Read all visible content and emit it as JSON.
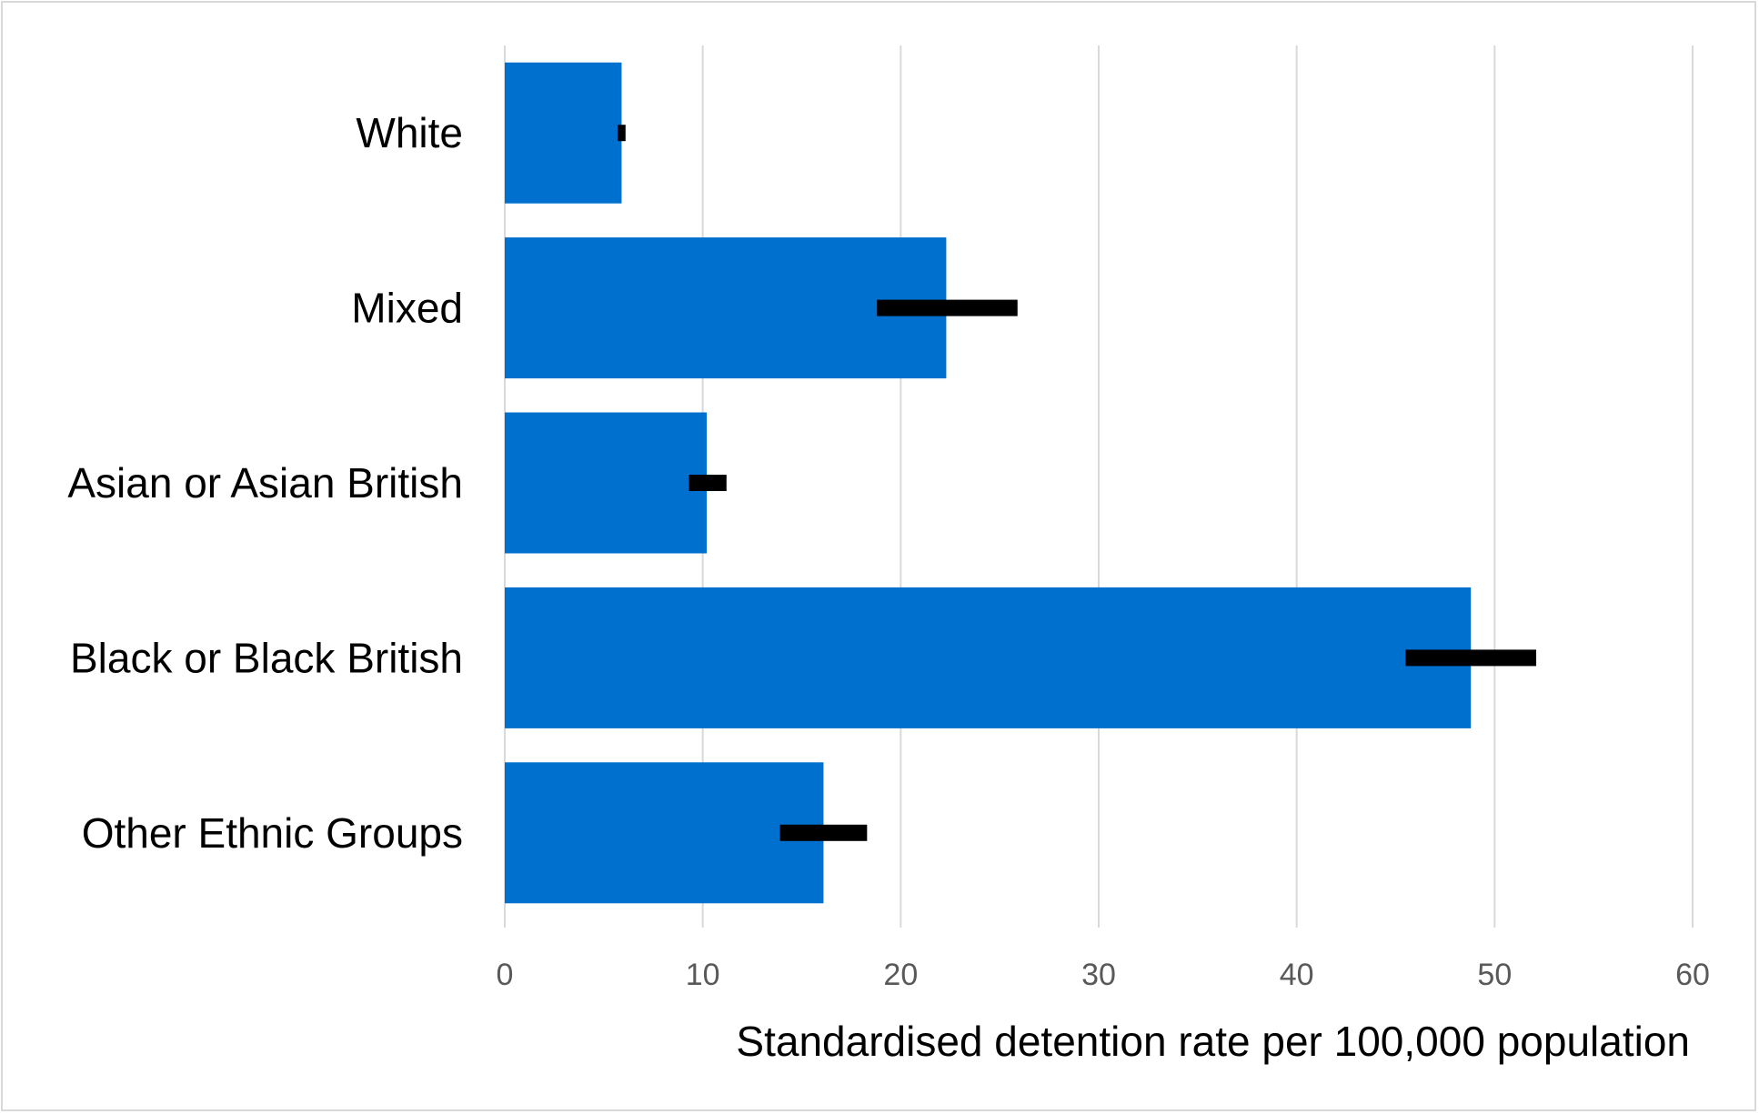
{
  "chart_data": {
    "type": "bar",
    "orientation": "horizontal",
    "categories": [
      "White",
      "Mixed",
      "Asian or Asian British",
      "Black or Black British",
      "Other Ethnic Groups"
    ],
    "values": [
      5.9,
      22.3,
      10.2,
      48.8,
      16.1
    ],
    "error_bars": [
      {
        "low": 5.7,
        "high": 6.1
      },
      {
        "low": 18.8,
        "high": 25.9
      },
      {
        "low": 9.3,
        "high": 11.2
      },
      {
        "low": 45.5,
        "high": 52.1
      },
      {
        "low": 13.9,
        "high": 18.3
      }
    ],
    "xlabel": "Standardised detention rate per 100,000 population",
    "ylabel": "",
    "xlim": [
      0,
      60
    ],
    "xticks": [
      0,
      10,
      20,
      30,
      40,
      50,
      60
    ],
    "xtick_labels": [
      "0",
      "10",
      "20",
      "30",
      "40",
      "50",
      "60"
    ],
    "grid": "vertical",
    "legend": "none",
    "colors": {
      "bar": "#0070CE",
      "error_bar": "#000000",
      "grid": "#d9d9d9",
      "tick_label": "#595959"
    }
  }
}
